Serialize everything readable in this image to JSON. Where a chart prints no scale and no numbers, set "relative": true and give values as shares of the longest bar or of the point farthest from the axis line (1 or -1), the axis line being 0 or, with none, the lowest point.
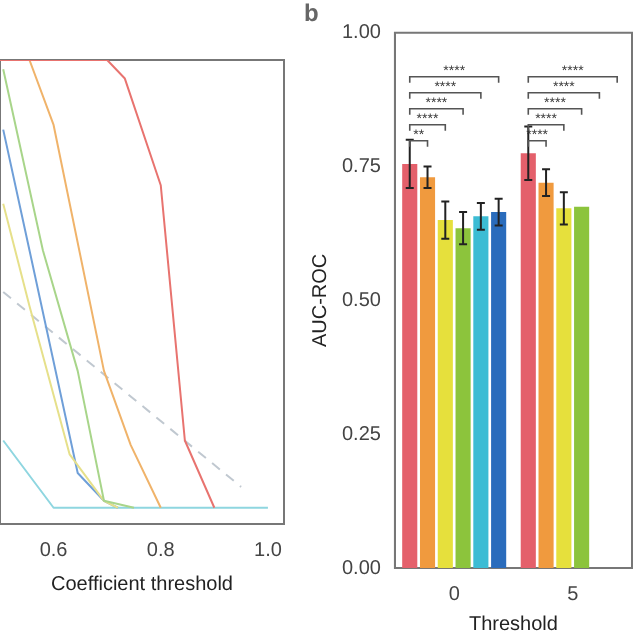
{
  "chart_data": [
    {
      "type": "line",
      "relative": true,
      "xlabel": "Coefficient threshold",
      "xlim": [
        0.5,
        1.03
      ],
      "xticks": [
        0.6,
        0.8,
        {
          "value": 1.0,
          "label": "1.0"
        }
      ],
      "grid": false,
      "legend": false,
      "marker": "none",
      "line_style": "solid",
      "series": [
        {
          "color": "#e8736f",
          "x": [
            0.5,
            0.7,
            0.733,
            0.8,
            0.845,
            0.9
          ],
          "values": [
            1,
            1,
            0.96,
            0.73,
            0.18,
            0.035
          ]
        },
        {
          "color": "#f0b36a",
          "x": [
            0.5,
            0.555,
            0.6,
            0.694,
            0.744,
            0.8
          ],
          "values": [
            1,
            1,
            0.86,
            0.33,
            0.17,
            0.035
          ]
        },
        {
          "color": "#a8d58a",
          "x": [
            0.506,
            0.58,
            0.645,
            0.694,
            0.75
          ],
          "values": [
            0.98,
            0.59,
            0.33,
            0.05,
            0.035
          ]
        },
        {
          "color": "#e6e08a",
          "x": [
            0.506,
            0.555,
            0.63,
            0.694,
            0.72
          ],
          "values": [
            0.69,
            0.47,
            0.15,
            0.05,
            0.035
          ]
        },
        {
          "color": "#6f9fd8",
          "x": [
            0.506,
            0.555,
            0.645,
            0.694,
            0.72
          ],
          "values": [
            0.85,
            0.59,
            0.11,
            0.05,
            0.035
          ]
        },
        {
          "color": "#8fd6e0",
          "x": [
            0.506,
            0.6,
            1.0
          ],
          "values": [
            0.18,
            0.035,
            0.035
          ]
        },
        {
          "color": "#c0c8d0",
          "line_style": "dashed",
          "x": [
            0.506,
            0.95
          ],
          "values": [
            0.5,
            0.08
          ]
        }
      ]
    },
    {
      "type": "bar",
      "title": "b",
      "xlabel": "Threshold",
      "ylabel": "AUC-ROC",
      "categories": [
        "0",
        "5"
      ],
      "ylim": [
        0,
        1
      ],
      "yticks": [
        {
          "value": 0,
          "label": "0.00"
        },
        {
          "value": 0.25,
          "label": "0.25"
        },
        {
          "value": 0.5,
          "label": "0.50"
        },
        {
          "value": 0.75,
          "label": "0.75"
        },
        {
          "value": 1,
          "label": "1.00"
        }
      ],
      "grid": false,
      "legend": false,
      "annotations": [
        "**",
        "****",
        "****",
        "****",
        "****",
        "****",
        "****",
        "****",
        "****",
        "****"
      ],
      "series": [
        {
          "color": "#e4606b",
          "values": [
            0.755,
            0.775
          ],
          "errors": [
            0.045,
            0.05
          ]
        },
        {
          "color": "#f09a3e",
          "values": [
            0.73,
            0.72
          ],
          "errors": [
            0.02,
            0.025
          ]
        },
        {
          "color": "#e6e03c",
          "values": [
            0.65,
            0.672
          ],
          "errors": [
            0.035,
            0.03
          ]
        },
        {
          "color": "#8cc43c",
          "values": [
            0.635,
            0.675
          ],
          "errors": [
            0.03,
            null
          ]
        },
        {
          "color": "#3cbcd4",
          "values": [
            0.657,
            null
          ],
          "errors": [
            0.025,
            null
          ]
        },
        {
          "color": "#2a6cbc",
          "values": [
            0.665,
            null
          ],
          "errors": [
            0.025,
            null
          ]
        }
      ]
    }
  ]
}
